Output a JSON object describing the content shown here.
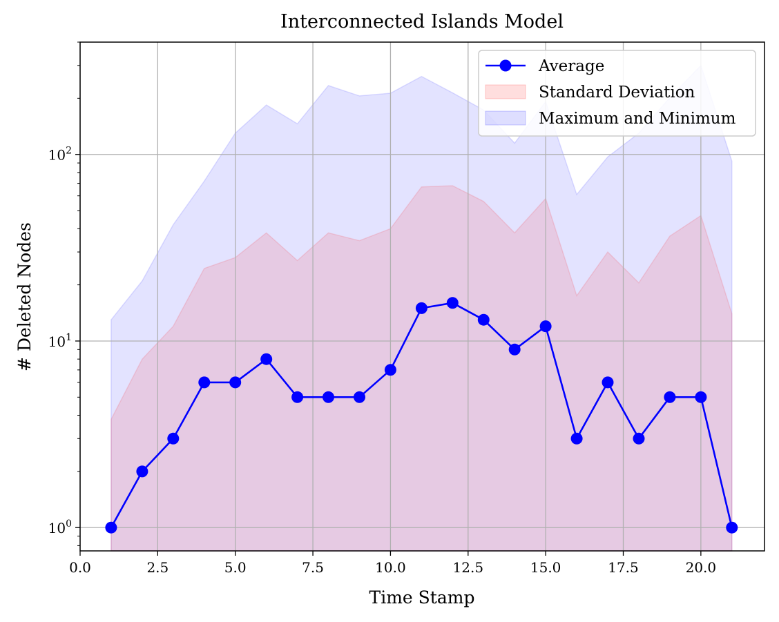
{
  "chart_data": {
    "type": "line",
    "title": "Interconnected Islands Model",
    "xlabel": "Time Stamp",
    "ylabel": "# Deleted Nodes",
    "yscale": "log",
    "xlim": [
      0,
      22.05
    ],
    "ylim": [
      0.75,
      400
    ],
    "grid": true,
    "legend_position": "top-right",
    "x_ticks": [
      "0.0",
      "2.5",
      "5.0",
      "7.5",
      "10.0",
      "12.5",
      "15.0",
      "17.5",
      "20.0"
    ],
    "y_ticks": [
      {
        "base": "10",
        "exp": "0"
      },
      {
        "base": "10",
        "exp": "1"
      },
      {
        "base": "10",
        "exp": "2"
      }
    ],
    "x": [
      1,
      2,
      3,
      4,
      5,
      6,
      7,
      8,
      9,
      10,
      11,
      12,
      13,
      14,
      15,
      16,
      17,
      18,
      19,
      20,
      21
    ],
    "series": [
      {
        "name": "Average",
        "color": "#0000ff",
        "values": [
          1,
          2,
          3,
          6,
          6,
          8,
          5,
          5,
          5,
          7,
          15,
          16,
          13,
          9,
          12,
          3,
          6,
          3,
          5,
          5,
          1
        ]
      }
    ],
    "bands": [
      {
        "name": "Maximum and Minimum",
        "color": "#0000ff",
        "opacity": 0.11,
        "upper": [
          13,
          21,
          42,
          72,
          130,
          184,
          146,
          234,
          206,
          213,
          262,
          214,
          173,
          115,
          192,
          61,
          97,
          130,
          202,
          300,
          92
        ],
        "lower": [
          0.75,
          0.75,
          0.75,
          0.75,
          0.75,
          0.75,
          0.75,
          0.75,
          0.75,
          0.75,
          0.75,
          0.75,
          0.75,
          0.75,
          0.75,
          0.75,
          0.75,
          0.75,
          0.75,
          0.75,
          0.75
        ]
      },
      {
        "name": "Standard Deviation",
        "color": "#ff0000",
        "opacity": 0.11,
        "upper": [
          3.8,
          8,
          12,
          24.5,
          28,
          38,
          27,
          38,
          34.5,
          40,
          67,
          68,
          56,
          38,
          58,
          17.5,
          30,
          20.5,
          36.5,
          47,
          14
        ],
        "lower": [
          0.75,
          0.75,
          0.75,
          0.75,
          0.75,
          0.75,
          0.75,
          0.75,
          0.75,
          0.75,
          0.75,
          0.75,
          0.75,
          0.75,
          0.75,
          0.75,
          0.75,
          0.75,
          0.75,
          0.75,
          0.75
        ]
      }
    ],
    "legend": [
      "Average",
      "Standard Deviation",
      "Maximum and Minimum"
    ]
  }
}
